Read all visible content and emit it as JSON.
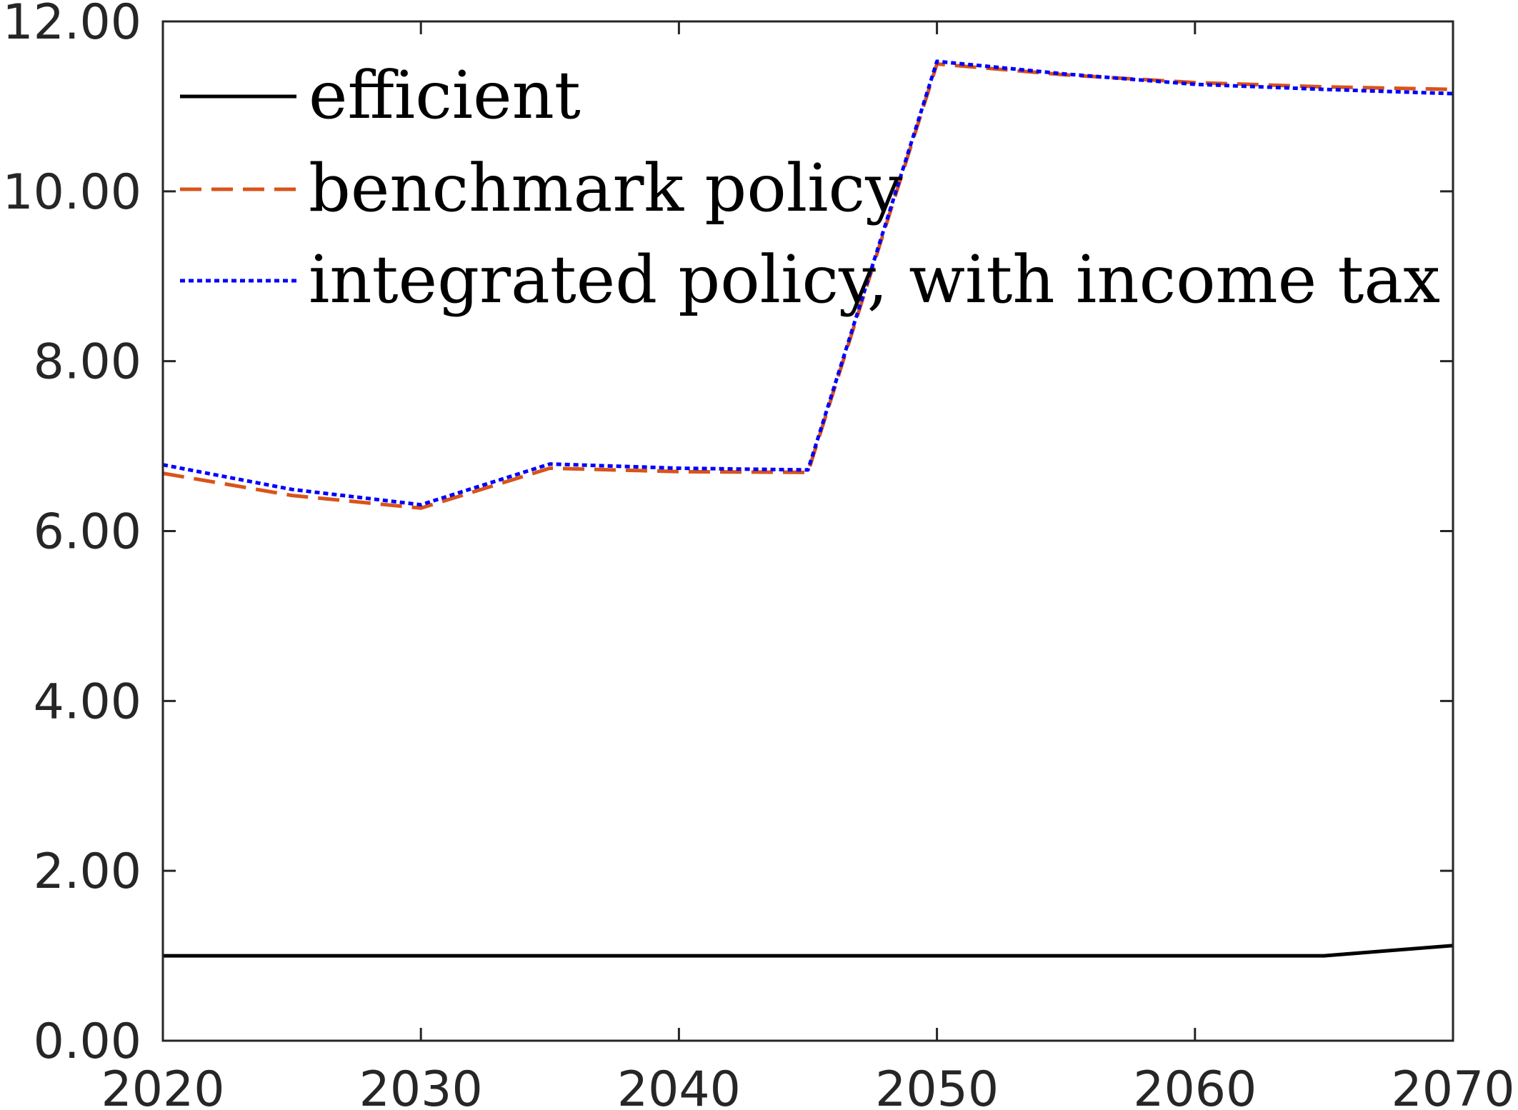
{
  "chart_data": {
    "type": "line",
    "title": "",
    "xlabel": "",
    "ylabel": "",
    "x": [
      2020,
      2025,
      2030,
      2035,
      2040,
      2045,
      2050,
      2055,
      2060,
      2065,
      2070
    ],
    "xlim": [
      2020,
      2070
    ],
    "ylim": [
      0,
      12
    ],
    "x_ticks": [
      2020,
      2030,
      2040,
      2050,
      2060,
      2070
    ],
    "x_tick_labels": [
      "2020",
      "2030",
      "2040",
      "2050",
      "2060",
      "2070"
    ],
    "y_ticks": [
      0,
      2,
      4,
      6,
      8,
      10,
      12
    ],
    "y_tick_labels": [
      "0.00",
      "2.00",
      "4.00",
      "6.00",
      "8.00",
      "10.00",
      "12.00"
    ],
    "grid": false,
    "legend_position": "top-left",
    "series": [
      {
        "name": "efficient",
        "color": "#000000",
        "style": "solid",
        "values": [
          1.0,
          1.0,
          1.0,
          1.0,
          1.0,
          1.0,
          1.0,
          1.0,
          1.0,
          1.0,
          1.12
        ]
      },
      {
        "name": "benchmark policy",
        "color": "#D95319",
        "style": "dashed",
        "values": [
          6.68,
          6.42,
          6.27,
          6.74,
          6.7,
          6.69,
          11.5,
          11.37,
          11.28,
          11.23,
          11.2
        ]
      },
      {
        "name": "integrated policy, with income tax",
        "color": "#0000FF",
        "style": "dotted",
        "values": [
          6.78,
          6.49,
          6.31,
          6.79,
          6.74,
          6.72,
          11.53,
          11.38,
          11.26,
          11.2,
          11.15
        ]
      }
    ]
  }
}
